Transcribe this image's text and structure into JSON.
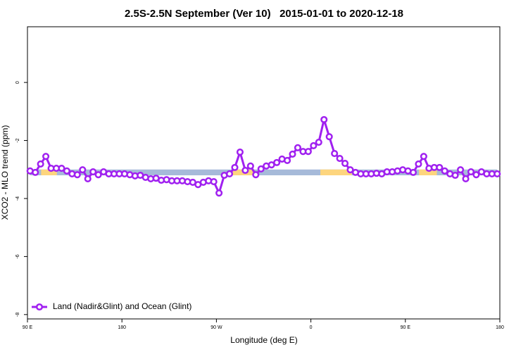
{
  "chart_data": {
    "type": "line",
    "title": "2.5S-2.5N September (Ver 10)   2015-01-01 to 2020-12-18",
    "xlabel": "Longitude (deg E)",
    "ylabel": "XCO2 - MLO trend (ppm)",
    "xlim": [
      90,
      540
    ],
    "ylim": [
      -8.15,
      1.92
    ],
    "xticks": [
      {
        "value": 90,
        "label": "90 E"
      },
      180,
      {
        "value": 270,
        "label": "90 W"
      },
      {
        "value": 360,
        "label": "0"
      },
      {
        "value": 450,
        "label": "90 E"
      },
      {
        "value": 540,
        "label": "180"
      }
    ],
    "yticks": [
      0,
      -2,
      -4,
      -6,
      -8
    ],
    "legend": "bottom-left",
    "surface_band": {
      "y": [
        -3.2,
        -3.0
      ],
      "ocean_color": "#a6bad9",
      "land_color": "#fdd57e",
      "land": [
        [
          103,
          118
        ],
        [
          285,
          305
        ],
        [
          369,
          399
        ],
        [
          463,
          480
        ]
      ]
    },
    "x": [
      92.5,
      97.5,
      102.5,
      107.5,
      112.5,
      117.5,
      122.5,
      127.5,
      132.5,
      137.5,
      142.5,
      147.5,
      152.5,
      157.5,
      162.5,
      167.5,
      172.5,
      177.5,
      182.5,
      187.5,
      192.5,
      197.5,
      202.5,
      207.5,
      212.5,
      217.5,
      222.5,
      227.5,
      232.5,
      237.5,
      242.5,
      247.5,
      252.5,
      257.5,
      262.5,
      267.5,
      272.5,
      277.5,
      282.5,
      287.5,
      292.5,
      297.5,
      302.5,
      307.5,
      312.5,
      317.5,
      322.5,
      327.5,
      332.5,
      337.5,
      342.5,
      347.5,
      352.5,
      357.5,
      362.5,
      367.5,
      372.5,
      377.5,
      382.5,
      387.5,
      392.5,
      397.5,
      402.5,
      407.5,
      412.5,
      417.5,
      422.5,
      427.5,
      432.5,
      437.5,
      442.5,
      447.5,
      452.5,
      457.5,
      462.5,
      467.5,
      472.5,
      477.5,
      482.5,
      487.5,
      492.5,
      497.5,
      502.5,
      507.5,
      512.5,
      517.5,
      522.5,
      527.5,
      532.5,
      537.5
    ],
    "series": [
      {
        "name": "Land (Nadir&Glint) and Ocean (Glint)",
        "color": "#a020f0",
        "values": [
          -3.05,
          -3.1,
          -2.81,
          -2.55,
          -2.96,
          -2.96,
          -2.96,
          -3.05,
          -3.15,
          -3.18,
          -3.01,
          -3.32,
          -3.08,
          -3.18,
          -3.08,
          -3.15,
          -3.15,
          -3.15,
          -3.15,
          -3.18,
          -3.22,
          -3.2,
          -3.27,
          -3.32,
          -3.3,
          -3.37,
          -3.35,
          -3.39,
          -3.39,
          -3.39,
          -3.42,
          -3.44,
          -3.52,
          -3.44,
          -3.39,
          -3.42,
          -3.81,
          -3.2,
          -3.15,
          -2.93,
          -2.4,
          -3.03,
          -2.88,
          -3.18,
          -2.98,
          -2.88,
          -2.84,
          -2.76,
          -2.64,
          -2.69,
          -2.47,
          -2.25,
          -2.38,
          -2.38,
          -2.18,
          -2.06,
          -1.28,
          -1.87,
          -2.45,
          -2.62,
          -2.79,
          -3.01,
          -3.1,
          -3.15,
          -3.15,
          -3.15,
          -3.13,
          -3.15,
          -3.08,
          -3.08,
          -3.05,
          -3.01,
          -3.05,
          -3.1,
          -2.81,
          -2.55,
          -2.96,
          -2.93,
          -2.93,
          -3.05,
          -3.15,
          -3.2,
          -3.01,
          -3.32,
          -3.08,
          -3.18,
          -3.08,
          -3.15,
          -3.15,
          -3.15
        ]
      }
    ]
  }
}
